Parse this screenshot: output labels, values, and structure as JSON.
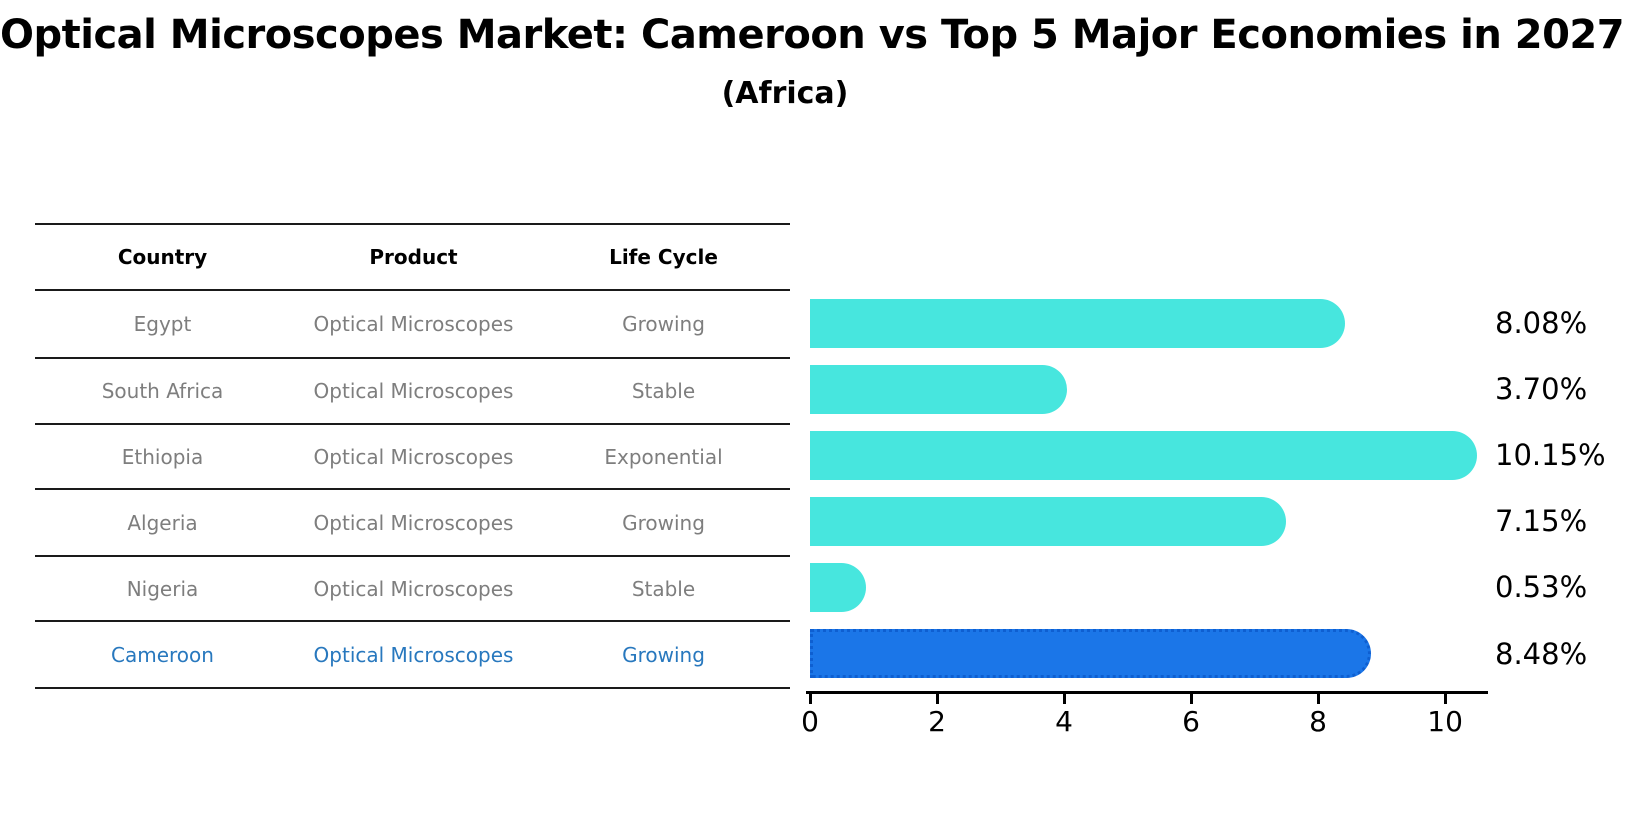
{
  "title": "Optical Microscopes Market: Cameroon vs Top 5 Major Economies in 2027",
  "subtitle": "(Africa)",
  "table": {
    "columns": [
      "Country",
      "Product",
      "Life Cycle"
    ],
    "rows": [
      {
        "country": "Egypt",
        "product": "Optical Microscopes",
        "life_cycle": "Growing"
      },
      {
        "country": "South Africa",
        "product": "Optical Microscopes",
        "life_cycle": "Stable"
      },
      {
        "country": "Ethiopia",
        "product": "Optical Microscopes",
        "life_cycle": "Exponential"
      },
      {
        "country": "Algeria",
        "product": "Optical Microscopes",
        "life_cycle": "Growing"
      },
      {
        "country": "Nigeria",
        "product": "Optical Microscopes",
        "life_cycle": "Stable"
      },
      {
        "country": "Cameroon",
        "product": "Optical Microscopes",
        "life_cycle": "Growing"
      }
    ],
    "highlight_row_index": 5
  },
  "chart_data": {
    "type": "bar",
    "orientation": "horizontal",
    "title": "",
    "xlabel": "",
    "ylabel": "",
    "grid": false,
    "legend": false,
    "categories": [
      "Egypt",
      "South Africa",
      "Ethiopia",
      "Algeria",
      "Nigeria",
      "Cameroon"
    ],
    "values": [
      8.08,
      3.7,
      10.15,
      7.15,
      0.53,
      8.48
    ],
    "value_labels": [
      "8.08%",
      "3.70%",
      "10.15%",
      "7.15%",
      "0.53%",
      "8.48%"
    ],
    "xticks": [
      0,
      2,
      4,
      6,
      8,
      10
    ],
    "xlim": [
      0,
      10.66
    ],
    "highlight_index": 5,
    "colors": {
      "bar": "#47E6DE",
      "highlight_bar": "#1B76E8",
      "highlight_bar_edge": "#0E5FD1",
      "table_row_text": "#7E7E7E",
      "highlight_row_text": "#2878BE",
      "axis": "#000000"
    }
  }
}
